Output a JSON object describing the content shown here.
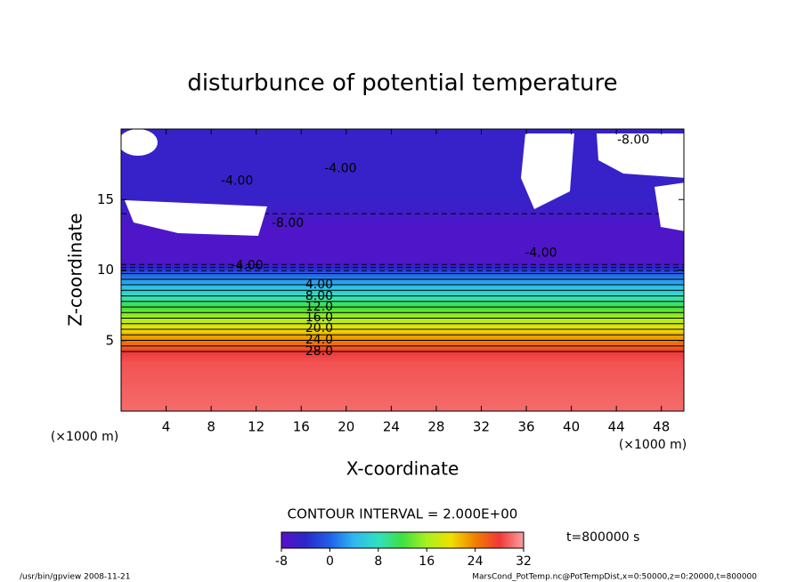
{
  "chart_data": {
    "type": "contour",
    "title": "disturbunce of potential temperature",
    "x_label": "X-coordinate",
    "y_label": "Z-coordinate",
    "x_unit": "(×1000 m)",
    "y_unit": "(×1000 m)",
    "xlim": [
      0,
      50
    ],
    "ylim": [
      0,
      20
    ],
    "xticks": [
      4,
      8,
      12,
      16,
      20,
      24,
      28,
      32,
      36,
      40,
      44,
      48
    ],
    "yticks": [
      5,
      10,
      15
    ],
    "profile": {
      "z": [
        0,
        3.5,
        4.23,
        9.75,
        10.5,
        13,
        15,
        20
      ],
      "values": [
        30,
        29,
        28,
        0,
        -7,
        -7,
        -5,
        -5
      ]
    },
    "contour_interval": 2,
    "contour_labels": [
      {
        "value": -8,
        "label": "-8.00",
        "x": 45.5,
        "z": 19.2
      },
      {
        "value": -4,
        "label": "-4.00",
        "x": 19.5,
        "z": 17.2
      },
      {
        "value": -4,
        "label": "-4.00",
        "x": 10.3,
        "z": 16.3
      },
      {
        "value": -8,
        "label": "-8.00",
        "x": 14.8,
        "z": 13.3
      },
      {
        "value": -4,
        "label": "-4.00",
        "x": 11.2,
        "z": 10.3
      },
      {
        "value": -4,
        "label": "-4.00",
        "x": 37.3,
        "z": 11.2
      },
      {
        "value": 4,
        "label": "4.00",
        "x": 17.6,
        "z": 8.96
      },
      {
        "value": 8,
        "label": "8.00",
        "x": 17.6,
        "z": 8.14
      },
      {
        "value": 12,
        "label": "12.0",
        "x": 17.6,
        "z": 7.38
      },
      {
        "value": 16,
        "label": "16.0",
        "x": 17.6,
        "z": 6.62
      },
      {
        "value": 20,
        "label": "20.0",
        "x": 17.6,
        "z": 5.87
      },
      {
        "value": 24,
        "label": "24.0",
        "x": 17.6,
        "z": 5.05
      },
      {
        "value": 28,
        "label": "28.0",
        "x": 17.6,
        "z": 4.23
      }
    ],
    "contour_interval_text": "CONTOUR INTERVAL = 2.000E+00",
    "time_text": "t=800000 s",
    "clim": [
      -8,
      32
    ],
    "colorbar_ticks": [
      -8,
      0,
      8,
      16,
      24,
      32
    ],
    "colormap": [
      "#5a10c8",
      "#2a28c8",
      "#2060e8",
      "#30b8f0",
      "#30e0c0",
      "#40e040",
      "#a8f020",
      "#f0e000",
      "#f08000",
      "#f03838",
      "#f8a0a0"
    ],
    "footer_left": "/usr/bin/gpview  2008-11-21",
    "footer_right": "MarsCond_PotTemp.nc@PotTempDist,x=0:50000,z=0:20000,t=800000"
  }
}
